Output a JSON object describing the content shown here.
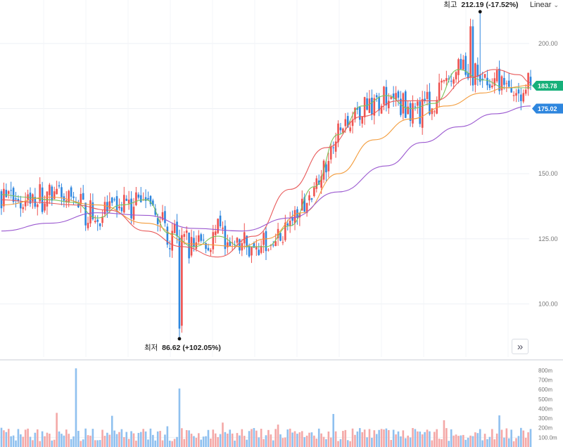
{
  "scale_toggle": {
    "label": "Linear",
    "icon": "chevron-down-icon"
  },
  "expand_button": {
    "icon": "double-chevron-right-icon"
  },
  "colors": {
    "up": "#ef5350",
    "down": "#2e86de",
    "ma_short": "#7cc35a",
    "ma_mid": "#e85a5a",
    "ma_long": "#f39c3c",
    "ma_longest": "#9b59d0",
    "last_price_badge": "#16b07a",
    "ma_badge": "#2e86de",
    "grid": "#eef1f5"
  },
  "annotations": {
    "high": {
      "label": "최고",
      "value": "212.19",
      "change": "(-17.52%)"
    },
    "low": {
      "label": "최저",
      "value": "86.62",
      "change": "(+102.05%)"
    }
  },
  "price_badges": {
    "last": "183.78",
    "ma": "175.02"
  },
  "chart_data": [
    {
      "type": "candlestick",
      "title": "",
      "y_axis": {
        "ticks": [
          "200.00",
          "175.00",
          "150.00",
          "125.00",
          "100.00"
        ],
        "ylim": [
          85,
          214
        ]
      },
      "high": 212.19,
      "low": 86.62,
      "last": 183.78,
      "x_range": [
        0,
        220
      ],
      "ma_series": [
        {
          "key": "ma_short",
          "color": "#7cc35a",
          "points": [
            [
              0,
              142
            ],
            [
              10,
              141
            ],
            [
              20,
              140
            ],
            [
              30,
              139
            ],
            [
              40,
              133
            ],
            [
              50,
              138
            ],
            [
              60,
              140
            ],
            [
              70,
              127
            ],
            [
              80,
              122
            ],
            [
              90,
              126
            ],
            [
              100,
              122
            ],
            [
              110,
              122
            ],
            [
              120,
              130
            ],
            [
              130,
              145
            ],
            [
              140,
              165
            ],
            [
              150,
              176
            ],
            [
              160,
              180
            ],
            [
              170,
              175
            ],
            [
              180,
              177
            ],
            [
              190,
              190
            ],
            [
              200,
              186
            ],
            [
              210,
              183
            ],
            [
              220,
              183
            ]
          ]
        },
        {
          "key": "ma_mid",
          "color": "#e85a5a",
          "points": [
            [
              0,
              140
            ],
            [
              15,
              139
            ],
            [
              30,
              138
            ],
            [
              45,
              136
            ],
            [
              60,
              128
            ],
            [
              75,
              122
            ],
            [
              90,
              118
            ],
            [
              105,
              126
            ],
            [
              120,
              144
            ],
            [
              135,
              160
            ],
            [
              150,
              172
            ],
            [
              165,
              178
            ],
            [
              180,
              178
            ],
            [
              195,
              187
            ],
            [
              205,
              190
            ],
            [
              215,
              188
            ],
            [
              220,
              185
            ]
          ]
        },
        {
          "key": "ma_long",
          "color": "#f39c3c",
          "points": [
            [
              0,
              138
            ],
            [
              20,
              141
            ],
            [
              40,
              138
            ],
            [
              60,
              131
            ],
            [
              80,
              123
            ],
            [
              100,
              122
            ],
            [
              110,
              125
            ],
            [
              125,
              135
            ],
            [
              140,
              150
            ],
            [
              155,
              163
            ],
            [
              170,
              171
            ],
            [
              185,
              176
            ],
            [
              200,
              181
            ],
            [
              210,
              183
            ],
            [
              220,
              184
            ]
          ]
        },
        {
          "key": "ma_longest",
          "color": "#9b59d0",
          "points": [
            [
              0,
              128
            ],
            [
              20,
              131
            ],
            [
              40,
              135
            ],
            [
              60,
              134
            ],
            [
              80,
              129
            ],
            [
              100,
              128
            ],
            [
              120,
              133
            ],
            [
              140,
              143
            ],
            [
              160,
              153
            ],
            [
              175,
              162
            ],
            [
              190,
              168
            ],
            [
              205,
              173
            ],
            [
              220,
              176
            ]
          ]
        }
      ]
    },
    {
      "type": "bar",
      "title": "",
      "y_axis": {
        "ticks": [
          "800m",
          "700m",
          "600m",
          "500m",
          "400m",
          "300m",
          "200m",
          "100.0m"
        ],
        "unit": "m"
      },
      "volume_max": 850
    }
  ]
}
